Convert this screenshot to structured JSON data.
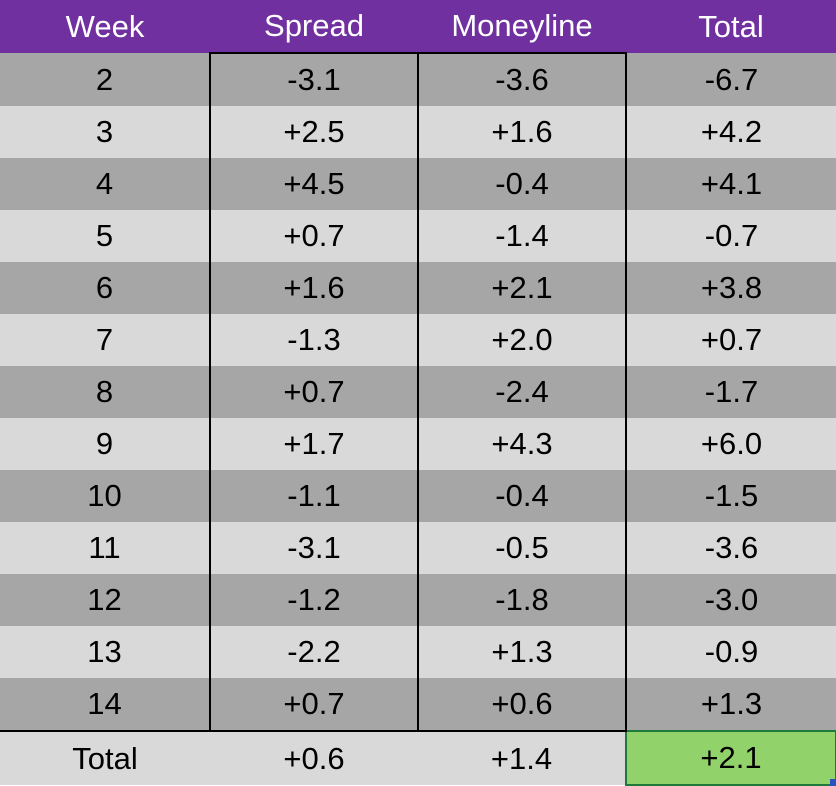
{
  "headers": [
    "Week",
    "Spread",
    "Moneyline",
    "Total"
  ],
  "rows": [
    {
      "week": "2",
      "spread": "-3.1",
      "moneyline": "-3.6",
      "total": "-6.7"
    },
    {
      "week": "3",
      "spread": "+2.5",
      "moneyline": "+1.6",
      "total": "+4.2"
    },
    {
      "week": "4",
      "spread": "+4.5",
      "moneyline": "-0.4",
      "total": "+4.1"
    },
    {
      "week": "5",
      "spread": "+0.7",
      "moneyline": "-1.4",
      "total": "-0.7"
    },
    {
      "week": "6",
      "spread": "+1.6",
      "moneyline": "+2.1",
      "total": "+3.8"
    },
    {
      "week": "7",
      "spread": "-1.3",
      "moneyline": "+2.0",
      "total": "+0.7"
    },
    {
      "week": "8",
      "spread": "+0.7",
      "moneyline": "-2.4",
      "total": "-1.7"
    },
    {
      "week": "9",
      "spread": "+1.7",
      "moneyline": "+4.3",
      "total": "+6.0"
    },
    {
      "week": "10",
      "spread": "-1.1",
      "moneyline": "-0.4",
      "total": "-1.5"
    },
    {
      "week": "11",
      "spread": "-3.1",
      "moneyline": "-0.5",
      "total": "-3.6"
    },
    {
      "week": "12",
      "spread": "-1.2",
      "moneyline": "-1.8",
      "total": "-3.0"
    },
    {
      "week": "13",
      "spread": "-2.2",
      "moneyline": "+1.3",
      "total": "-0.9"
    },
    {
      "week": "14",
      "spread": "+0.7",
      "moneyline": "+0.6",
      "total": "+1.3"
    }
  ],
  "totals": {
    "label": "Total",
    "spread": "+0.6",
    "moneyline": "+1.4",
    "total": "+2.1"
  },
  "colors": {
    "header_bg": "#7030a0",
    "row_dark": "#a6a6a6",
    "row_light": "#d9d9d9",
    "selected_cell": "#92d26b",
    "selection_border": "#1e7a3a"
  }
}
